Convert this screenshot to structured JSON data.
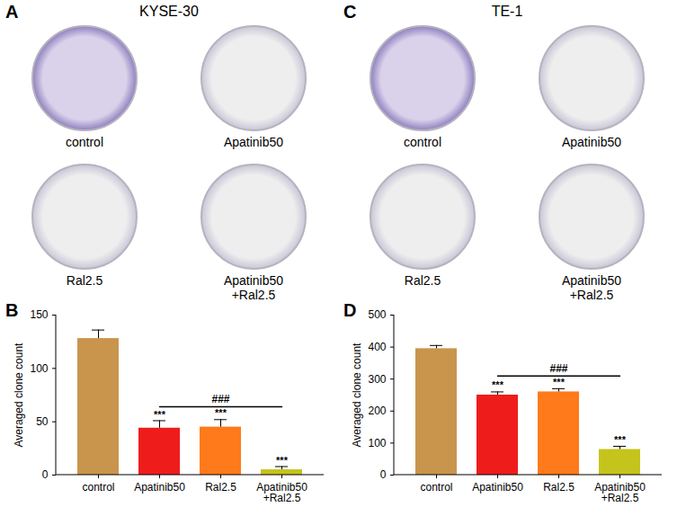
{
  "plates": [
    {
      "panel_label": "A",
      "title": "KYSE-30",
      "labels": [
        "control",
        "Apatinib50",
        "Ral2.5",
        "Apatinib50\n+Ral2.5"
      ]
    },
    {
      "panel_label": "C",
      "title": "TE-1",
      "labels": [
        "control",
        "Apatinib50",
        "Ral2.5",
        "Apatinib50\n+Ral2.5"
      ]
    }
  ],
  "chart_data": [
    {
      "type": "bar",
      "panel_label": "B",
      "categories": [
        "control",
        "Apatinib50",
        "Ral2.5",
        "Apatinib50\n+Ral2.5"
      ],
      "values": [
        128,
        44,
        45,
        5
      ],
      "errors": [
        8,
        7,
        7,
        3
      ],
      "colors": [
        "#c9954c",
        "#ef1c1c",
        "#ff7a1a",
        "#c5c41c"
      ],
      "ylabel": "Averaged clone count",
      "ylim": [
        0,
        150
      ],
      "yticks": [
        0,
        50,
        100,
        150
      ],
      "grid": false,
      "annotations": [
        {
          "text": "***",
          "category": "Apatinib50"
        },
        {
          "text": "***",
          "category": "Ral2.5"
        },
        {
          "text": "***",
          "category": "Apatinib50\n+Ral2.5"
        }
      ],
      "bracket": {
        "text": "###",
        "from": "Apatinib50",
        "to": "Apatinib50\n+Ral2.5"
      }
    },
    {
      "type": "bar",
      "panel_label": "D",
      "categories": [
        "control",
        "Apatinib50",
        "Ral2.5",
        "Apatinib50\n+Ral2.5"
      ],
      "values": [
        395,
        250,
        260,
        80
      ],
      "errors": [
        10,
        10,
        10,
        10
      ],
      "colors": [
        "#c9954c",
        "#ef1c1c",
        "#ff7a1a",
        "#c5c41c"
      ],
      "ylabel": "Averaged clone count",
      "ylim": [
        0,
        500
      ],
      "yticks": [
        0,
        100,
        200,
        300,
        400,
        500
      ],
      "grid": false,
      "annotations": [
        {
          "text": "***",
          "category": "Apatinib50"
        },
        {
          "text": "***",
          "category": "Ral2.5"
        },
        {
          "text": "***",
          "category": "Apatinib50\n+Ral2.5"
        }
      ],
      "bracket": {
        "text": "###",
        "from": "Apatinib50",
        "to": "Apatinib50\n+Ral2.5"
      }
    }
  ]
}
